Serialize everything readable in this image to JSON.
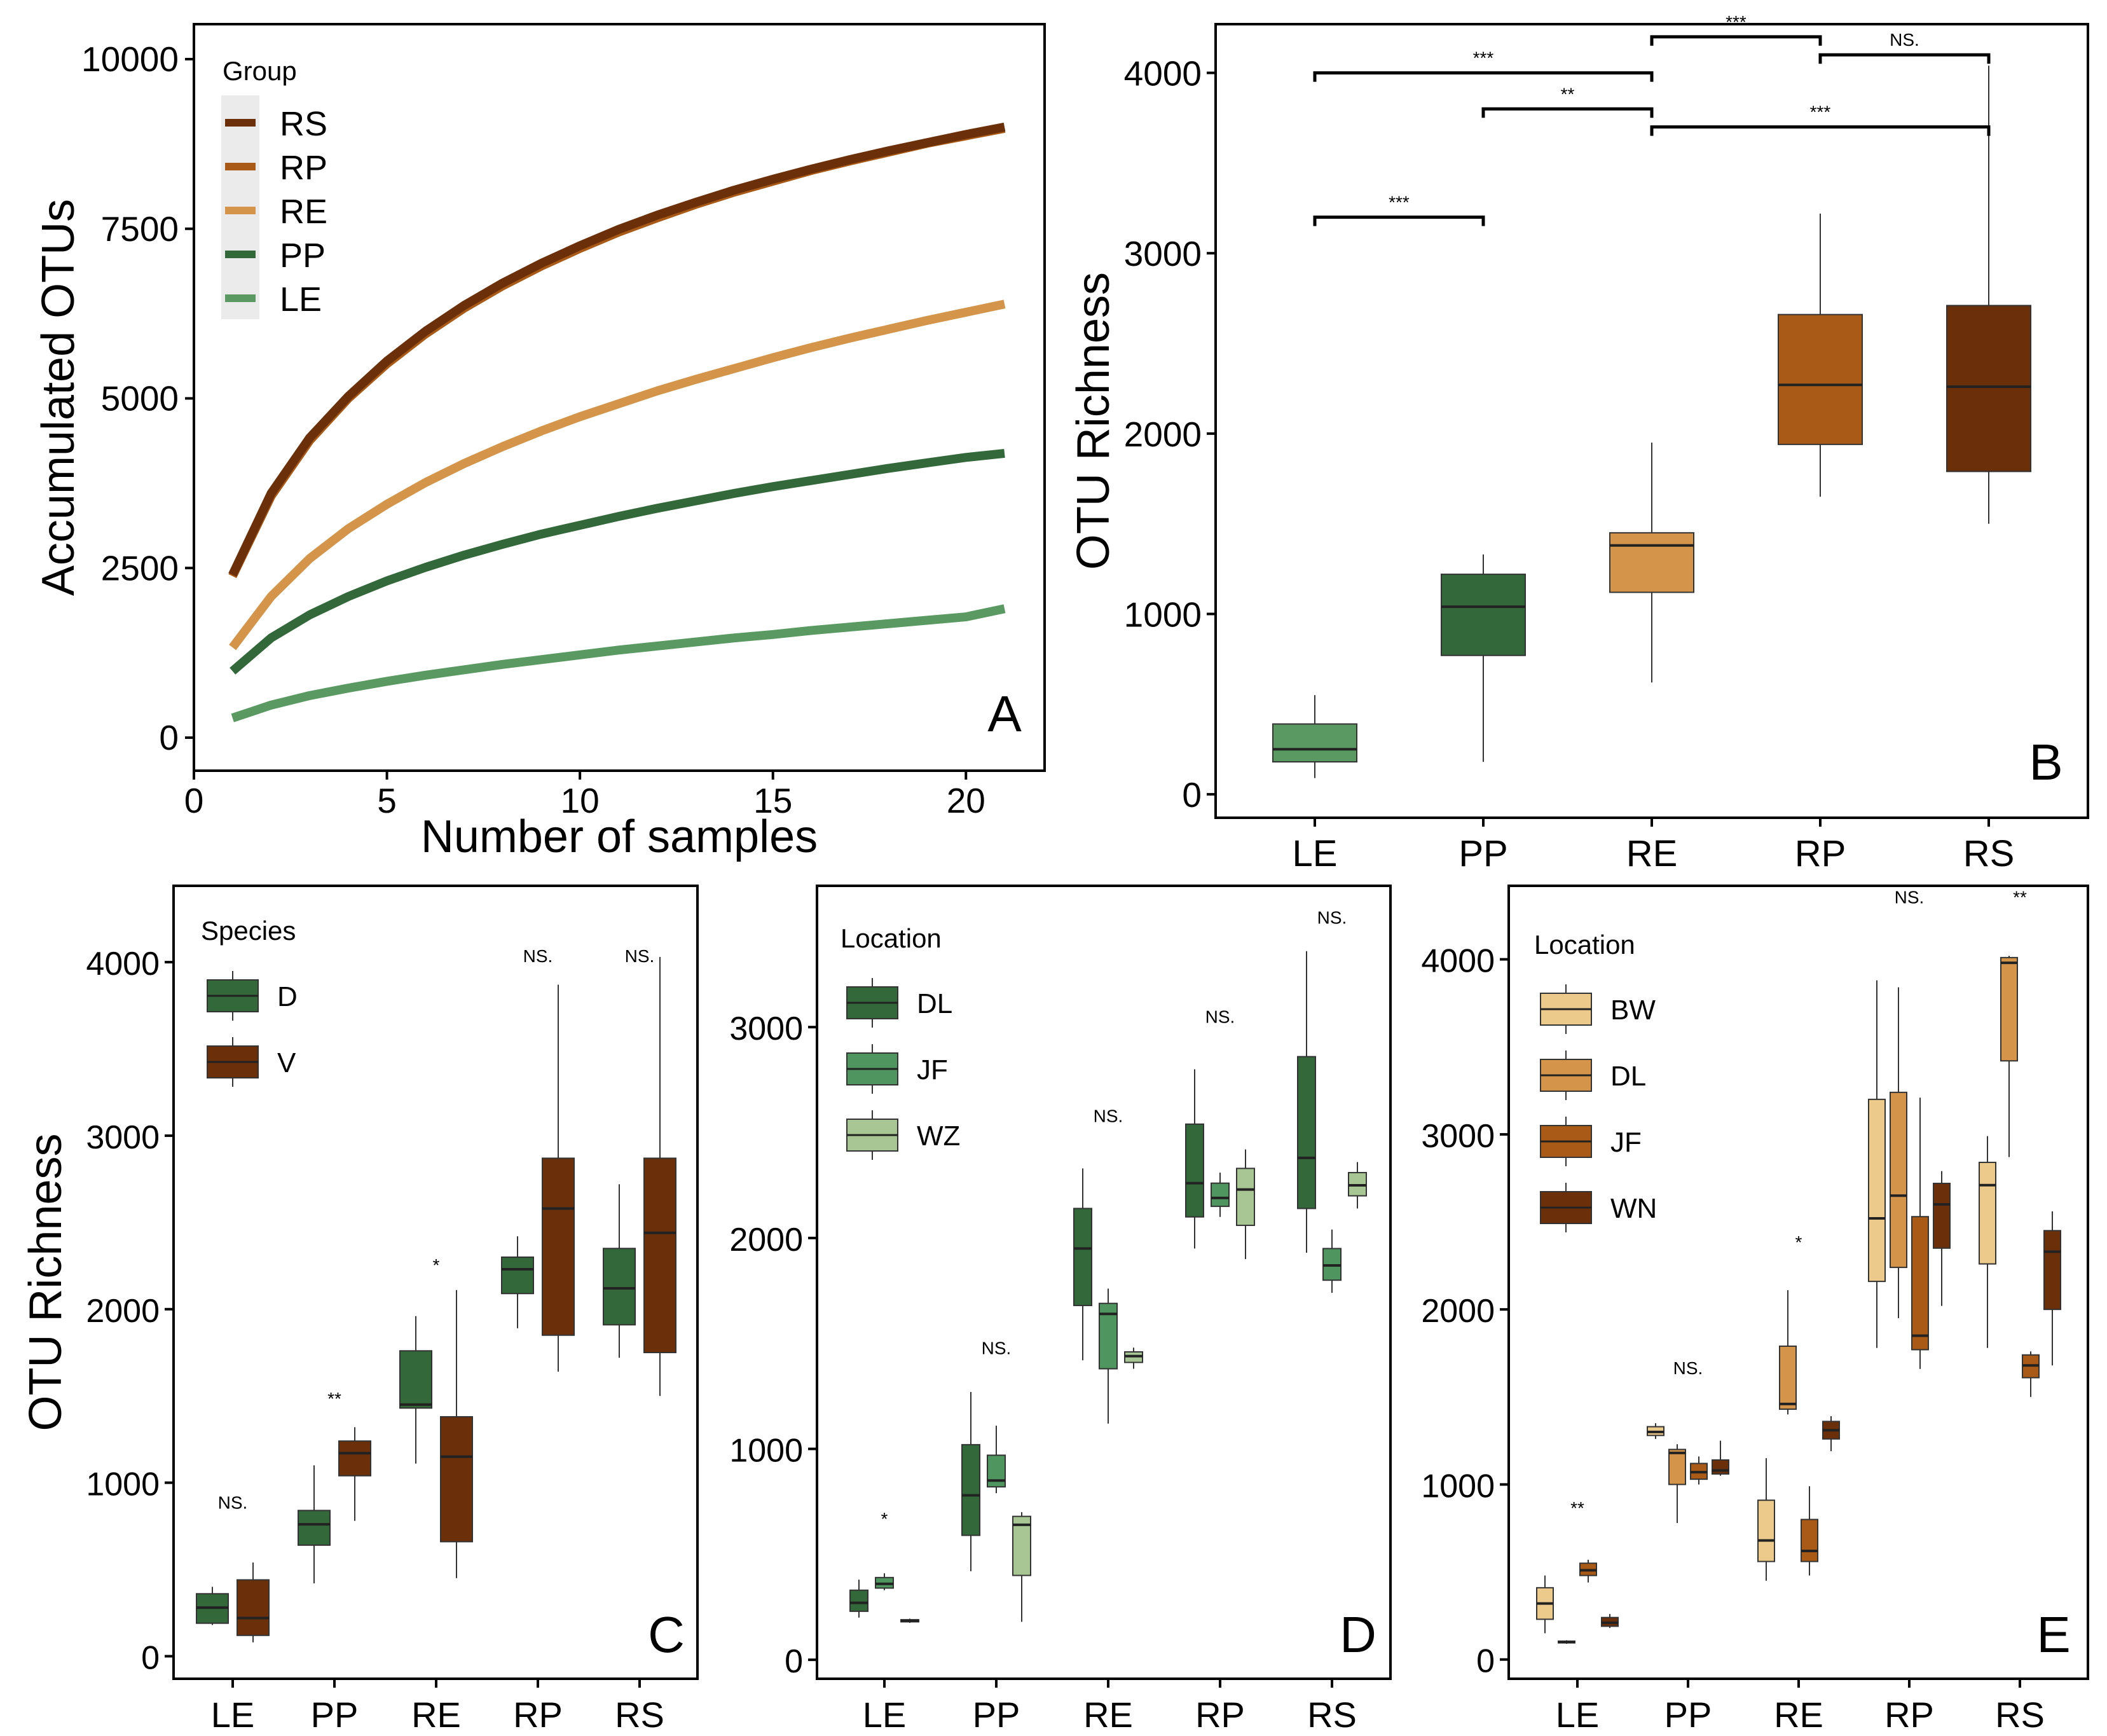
{
  "colors": {
    "LE": "#5a9a62",
    "PP": "#33683a",
    "RE": "#d4954a",
    "RP": "#a95a16",
    "RS": "#6b300a",
    "JF": "#4e9560",
    "WZ": "#a7c694",
    "BW": "#ecca8c",
    "DL_E": "#d4954a",
    "JF_E": "#a95a16",
    "WN": "#6b300a"
  },
  "chart_data": [
    {
      "id": "A",
      "type": "line",
      "panel_label": "A",
      "xlabel": "Number of samples",
      "ylabel": "Accumulated OTUs",
      "xlim": [
        0,
        21
      ],
      "ylim": [
        0,
        10000
      ],
      "xticks": [
        "0",
        "5",
        "10",
        "15",
        "20"
      ],
      "yticks": [
        "0",
        "2500",
        "5000",
        "7500",
        "10000"
      ],
      "legend_title": "Group",
      "legend": [
        "RS",
        "RP",
        "RE",
        "PP",
        "LE"
      ],
      "x": [
        1,
        2,
        3,
        4,
        5,
        6,
        7,
        8,
        9,
        10,
        11,
        12,
        13,
        14,
        15,
        16,
        17,
        18,
        19,
        20,
        21
      ],
      "series": [
        {
          "name": "RS",
          "color_key": "RS",
          "values": [
            2400,
            3600,
            4420,
            5030,
            5550,
            5990,
            6370,
            6700,
            6990,
            7250,
            7490,
            7700,
            7890,
            8070,
            8230,
            8380,
            8520,
            8650,
            8770,
            8890,
            9000
          ]
        },
        {
          "name": "RP",
          "color_key": "RP",
          "values": [
            2380,
            3560,
            4380,
            5000,
            5510,
            5950,
            6330,
            6660,
            6950,
            7210,
            7450,
            7660,
            7860,
            8040,
            8200,
            8360,
            8500,
            8630,
            8760,
            8870,
            8980
          ]
        },
        {
          "name": "RE",
          "color_key": "RE",
          "values": [
            1330,
            2080,
            2640,
            3080,
            3440,
            3760,
            4040,
            4290,
            4520,
            4730,
            4920,
            5110,
            5280,
            5440,
            5600,
            5750,
            5890,
            6020,
            6150,
            6270,
            6390
          ]
        },
        {
          "name": "PP",
          "color_key": "PP",
          "values": [
            980,
            1470,
            1810,
            2080,
            2310,
            2510,
            2690,
            2850,
            3000,
            3130,
            3260,
            3380,
            3490,
            3600,
            3700,
            3790,
            3880,
            3970,
            4050,
            4130,
            4190
          ]
        },
        {
          "name": "LE",
          "color_key": "LE",
          "values": [
            290,
            480,
            620,
            730,
            830,
            920,
            1000,
            1080,
            1150,
            1220,
            1290,
            1350,
            1410,
            1470,
            1520,
            1580,
            1630,
            1680,
            1730,
            1780,
            1900
          ]
        }
      ]
    },
    {
      "id": "B",
      "type": "boxplot",
      "panel_label": "B",
      "ylabel": "OTU Richness",
      "ylim": [
        -130,
        4270
      ],
      "yticks": [
        0,
        1000,
        2000,
        3000,
        4000
      ],
      "categories": [
        "LE",
        "PP",
        "RE",
        "RP",
        "RS"
      ],
      "boxes": [
        {
          "cat": "LE",
          "color_key": "LE",
          "min": 90,
          "q1": 180,
          "median": 250,
          "q3": 390,
          "max": 550
        },
        {
          "cat": "PP",
          "color_key": "PP",
          "min": 180,
          "q1": 770,
          "median": 1040,
          "q3": 1220,
          "max": 1330
        },
        {
          "cat": "RE",
          "color_key": "RE",
          "min": 620,
          "q1": 1120,
          "median": 1380,
          "q3": 1450,
          "max": 1950
        },
        {
          "cat": "RP",
          "color_key": "RP",
          "min": 1650,
          "q1": 1940,
          "median": 2270,
          "q3": 2660,
          "max": 3220
        },
        {
          "cat": "RS",
          "color_key": "RS",
          "min": 1500,
          "q1": 1790,
          "median": 2260,
          "q3": 2710,
          "max": 4040
        }
      ],
      "brackets": [
        {
          "from": "LE",
          "to": "RE",
          "y": 4000,
          "label": "***"
        },
        {
          "from": "RE",
          "to": "RP",
          "y": 4200,
          "label": "***"
        },
        {
          "from": "RP",
          "to": "RS",
          "y": 4100,
          "label": "NS."
        },
        {
          "from": "PP",
          "to": "RE",
          "y": 3800,
          "label": "**"
        },
        {
          "from": "RE",
          "to": "RS",
          "y": 3700,
          "label": "***"
        },
        {
          "from": "LE",
          "to": "PP",
          "y": 3200,
          "label": "***"
        }
      ]
    },
    {
      "id": "C",
      "type": "boxplot",
      "panel_label": "C",
      "ylabel": "OTU Richness",
      "ylim": [
        -130,
        4440
      ],
      "yticks": [
        0,
        1000,
        2000,
        3000,
        4000
      ],
      "categories": [
        "LE",
        "PP",
        "RE",
        "RP",
        "RS"
      ],
      "legend_title": "Species",
      "legend": [
        {
          "label": "D",
          "color_key": "PP"
        },
        {
          "label": "V",
          "color_key": "RS"
        }
      ],
      "groups": [
        {
          "cat": "LE",
          "sig": "NS.",
          "sig_y": 850,
          "boxes": [
            {
              "color_key": "PP",
              "min": 180,
              "q1": 190,
              "median": 280,
              "q3": 360,
              "max": 400
            },
            {
              "color_key": "RS",
              "min": 80,
              "q1": 120,
              "median": 220,
              "q3": 440,
              "max": 540
            }
          ]
        },
        {
          "cat": "PP",
          "sig": "**",
          "sig_y": 1450,
          "boxes": [
            {
              "color_key": "PP",
              "min": 420,
              "q1": 640,
              "median": 760,
              "q3": 840,
              "max": 1100
            },
            {
              "color_key": "RS",
              "min": 780,
              "q1": 1040,
              "median": 1170,
              "q3": 1240,
              "max": 1320
            }
          ]
        },
        {
          "cat": "RE",
          "sig": "*",
          "sig_y": 2220,
          "boxes": [
            {
              "color_key": "PP",
              "min": 1110,
              "q1": 1430,
              "median": 1450,
              "q3": 1760,
              "max": 1960
            },
            {
              "color_key": "RS",
              "min": 450,
              "q1": 660,
              "median": 1150,
              "q3": 1380,
              "max": 2110
            }
          ]
        },
        {
          "cat": "RP",
          "sig": "NS.",
          "sig_y": 4000,
          "boxes": [
            {
              "color_key": "PP",
              "min": 1890,
              "q1": 2090,
              "median": 2230,
              "q3": 2300,
              "max": 2420
            },
            {
              "color_key": "RS",
              "min": 1640,
              "q1": 1850,
              "median": 2580,
              "q3": 2870,
              "max": 3870
            }
          ]
        },
        {
          "cat": "RS",
          "sig": "NS.",
          "sig_y": 4000,
          "boxes": [
            {
              "color_key": "PP",
              "min": 1720,
              "q1": 1910,
              "median": 2120,
              "q3": 2350,
              "max": 2720
            },
            {
              "color_key": "RS",
              "min": 1500,
              "q1": 1750,
              "median": 2440,
              "q3": 2870,
              "max": 4030
            }
          ]
        }
      ]
    },
    {
      "id": "D",
      "type": "boxplot",
      "panel_label": "D",
      "ylim": [
        -90,
        3670
      ],
      "yticks": [
        0,
        1000,
        2000,
        3000
      ],
      "categories": [
        "LE",
        "PP",
        "RE",
        "RP",
        "RS"
      ],
      "legend_title": "Location",
      "legend": [
        {
          "label": "DL",
          "color_key": "PP"
        },
        {
          "label": "JF",
          "color_key": "JF"
        },
        {
          "label": "WZ",
          "color_key": "WZ"
        }
      ],
      "groups": [
        {
          "cat": "LE",
          "sig": "*",
          "sig_y": 640,
          "boxes": [
            {
              "color_key": "PP",
              "min": 200,
              "q1": 230,
              "median": 270,
              "q3": 330,
              "max": 380
            },
            {
              "color_key": "JF",
              "min": 330,
              "q1": 340,
              "median": 360,
              "q3": 390,
              "max": 410
            },
            {
              "color_key": "WZ",
              "min": 175,
              "q1": 180,
              "median": 185,
              "q3": 190,
              "max": 195
            }
          ]
        },
        {
          "cat": "PP",
          "sig": "NS.",
          "sig_y": 1450,
          "boxes": [
            {
              "color_key": "PP",
              "min": 420,
              "q1": 590,
              "median": 780,
              "q3": 1020,
              "max": 1270
            },
            {
              "color_key": "JF",
              "min": 790,
              "q1": 820,
              "median": 850,
              "q3": 970,
              "max": 1110
            },
            {
              "color_key": "WZ",
              "min": 180,
              "q1": 400,
              "median": 640,
              "q3": 680,
              "max": 700
            }
          ]
        },
        {
          "cat": "RE",
          "sig": "NS.",
          "sig_y": 2550,
          "boxes": [
            {
              "color_key": "PP",
              "min": 1420,
              "q1": 1680,
              "median": 1950,
              "q3": 2140,
              "max": 2330
            },
            {
              "color_key": "JF",
              "min": 1120,
              "q1": 1380,
              "median": 1640,
              "q3": 1690,
              "max": 1760
            },
            {
              "color_key": "WZ",
              "min": 1380,
              "q1": 1410,
              "median": 1440,
              "q3": 1460,
              "max": 1480
            }
          ]
        },
        {
          "cat": "RP",
          "sig": "NS.",
          "sig_y": 3020,
          "boxes": [
            {
              "color_key": "PP",
              "min": 1950,
              "q1": 2100,
              "median": 2260,
              "q3": 2540,
              "max": 2800
            },
            {
              "color_key": "JF",
              "min": 2100,
              "q1": 2150,
              "median": 2190,
              "q3": 2260,
              "max": 2310
            },
            {
              "color_key": "WZ",
              "min": 1900,
              "q1": 2060,
              "median": 2230,
              "q3": 2330,
              "max": 2420
            }
          ]
        },
        {
          "cat": "RS",
          "sig": "NS.",
          "sig_y": 3490,
          "boxes": [
            {
              "color_key": "PP",
              "min": 1930,
              "q1": 2140,
              "median": 2380,
              "q3": 2860,
              "max": 3360
            },
            {
              "color_key": "JF",
              "min": 1740,
              "q1": 1800,
              "median": 1870,
              "q3": 1950,
              "max": 2040
            },
            {
              "color_key": "WZ",
              "min": 2140,
              "q1": 2200,
              "median": 2250,
              "q3": 2310,
              "max": 2360
            }
          ]
        }
      ]
    },
    {
      "id": "E",
      "type": "boxplot",
      "panel_label": "E",
      "ylim": [
        -110,
        4420
      ],
      "yticks": [
        0,
        1000,
        2000,
        3000,
        4000
      ],
      "categories": [
        "LE",
        "PP",
        "RE",
        "RP",
        "RS"
      ],
      "legend_title": "Location",
      "legend": [
        {
          "label": "BW",
          "color_key": "BW"
        },
        {
          "label": "DL",
          "color_key": "DL_E"
        },
        {
          "label": "JF",
          "color_key": "JF_E"
        },
        {
          "label": "WN",
          "color_key": "WN"
        }
      ],
      "groups": [
        {
          "cat": "LE",
          "sig": "**",
          "sig_y": 830,
          "boxes": [
            {
              "color_key": "BW",
              "min": 150,
              "q1": 230,
              "median": 320,
              "q3": 410,
              "max": 480
            },
            {
              "color_key": "DL_E",
              "min": 90,
              "q1": 95,
              "median": 100,
              "q3": 105,
              "max": 110
            },
            {
              "color_key": "JF_E",
              "min": 440,
              "q1": 480,
              "median": 510,
              "q3": 550,
              "max": 570
            },
            {
              "color_key": "WN",
              "min": 180,
              "q1": 190,
              "median": 210,
              "q3": 240,
              "max": 260
            }
          ]
        },
        {
          "cat": "PP",
          "sig": "NS.",
          "sig_y": 1630,
          "boxes": [
            {
              "color_key": "BW",
              "min": 1260,
              "q1": 1280,
              "median": 1300,
              "q3": 1330,
              "max": 1350
            },
            {
              "color_key": "DL_E",
              "min": 780,
              "q1": 1000,
              "median": 1180,
              "q3": 1200,
              "max": 1230
            },
            {
              "color_key": "JF_E",
              "min": 1000,
              "q1": 1030,
              "median": 1070,
              "q3": 1120,
              "max": 1160
            },
            {
              "color_key": "WN",
              "min": 1050,
              "q1": 1060,
              "median": 1080,
              "q3": 1140,
              "max": 1250
            }
          ]
        },
        {
          "cat": "RE",
          "sig": "*",
          "sig_y": 2350,
          "boxes": [
            {
              "color_key": "BW",
              "min": 450,
              "q1": 560,
              "median": 680,
              "q3": 910,
              "max": 1150
            },
            {
              "color_key": "DL_E",
              "min": 1400,
              "q1": 1430,
              "median": 1460,
              "q3": 1790,
              "max": 2110
            },
            {
              "color_key": "JF_E",
              "min": 480,
              "q1": 560,
              "median": 620,
              "q3": 800,
              "max": 990
            },
            {
              "color_key": "WN",
              "min": 1190,
              "q1": 1260,
              "median": 1310,
              "q3": 1360,
              "max": 1390
            }
          ]
        },
        {
          "cat": "RP",
          "sig": "NS.",
          "sig_y": 4320,
          "boxes": [
            {
              "color_key": "BW",
              "min": 1780,
              "q1": 2160,
              "median": 2520,
              "q3": 3200,
              "max": 3880
            },
            {
              "color_key": "DL_E",
              "min": 1950,
              "q1": 2240,
              "median": 2650,
              "q3": 3240,
              "max": 3840
            },
            {
              "color_key": "JF_E",
              "min": 1660,
              "q1": 1770,
              "median": 1850,
              "q3": 2530,
              "max": 3210
            },
            {
              "color_key": "WN",
              "min": 2020,
              "q1": 2350,
              "median": 2600,
              "q3": 2720,
              "max": 2790
            }
          ]
        },
        {
          "cat": "RS",
          "sig": "**",
          "sig_y": 4320,
          "boxes": [
            {
              "color_key": "BW",
              "min": 1780,
              "q1": 2260,
              "median": 2710,
              "q3": 2840,
              "max": 2990
            },
            {
              "color_key": "DL_E",
              "min": 2870,
              "q1": 3420,
              "median": 3980,
              "q3": 4010,
              "max": 4020
            },
            {
              "color_key": "JF_E",
              "min": 1500,
              "q1": 1610,
              "median": 1680,
              "q3": 1740,
              "max": 1760
            },
            {
              "color_key": "WN",
              "min": 1680,
              "q1": 2000,
              "median": 2330,
              "q3": 2450,
              "max": 2560
            }
          ]
        }
      ]
    }
  ]
}
